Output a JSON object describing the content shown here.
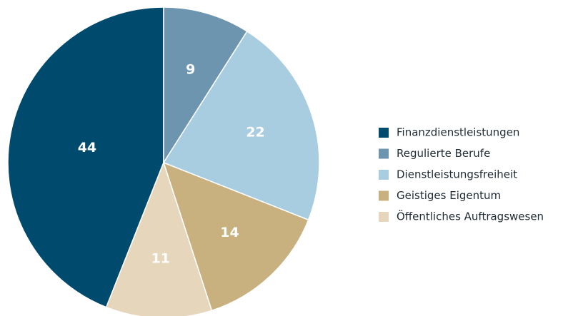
{
  "chart_data": {
    "type": "pie",
    "categories": [
      "Finanzdienstleistungen",
      "Regulierte Berufe",
      "Dienstleistungsfreiheit",
      "Geistiges Eigentum",
      "Öffentliches Auftragswesen"
    ],
    "values": [
      44,
      9,
      22,
      14,
      11
    ],
    "colors": [
      "#004a6e",
      "#6d95b0",
      "#a8cde0",
      "#c8b07f",
      "#e5d6bc"
    ],
    "startangle": -158.4,
    "legend": "right"
  }
}
